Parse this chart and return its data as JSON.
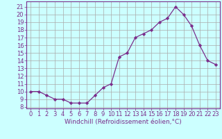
{
  "x": [
    0,
    1,
    2,
    3,
    4,
    5,
    6,
    7,
    8,
    9,
    10,
    11,
    12,
    13,
    14,
    15,
    16,
    17,
    18,
    19,
    20,
    21,
    22,
    23
  ],
  "y": [
    10,
    10,
    9.5,
    9,
    9,
    8.5,
    8.5,
    8.5,
    9.5,
    10.5,
    11,
    14.5,
    15,
    17,
    17.5,
    18,
    19,
    19.5,
    21,
    20,
    18.5,
    16,
    14,
    13.5
  ],
  "line_color": "#7B2D8B",
  "marker": "D",
  "marker_size": 2.2,
  "bg_color": "#CCFFFF",
  "grid_color": "#AAAAAA",
  "xlabel": "Windchill (Refroidissement éolien,°C)",
  "xlim": [
    -0.5,
    23.5
  ],
  "ylim": [
    7.8,
    21.7
  ],
  "yticks": [
    8,
    9,
    10,
    11,
    12,
    13,
    14,
    15,
    16,
    17,
    18,
    19,
    20,
    21
  ],
  "xticks": [
    0,
    1,
    2,
    3,
    4,
    5,
    6,
    7,
    8,
    9,
    10,
    11,
    12,
    13,
    14,
    15,
    16,
    17,
    18,
    19,
    20,
    21,
    22,
    23
  ],
  "tick_color": "#7B2D8B",
  "label_color": "#7B2D8B",
  "tick_fontsize": 6.0,
  "xlabel_fontsize": 6.5
}
